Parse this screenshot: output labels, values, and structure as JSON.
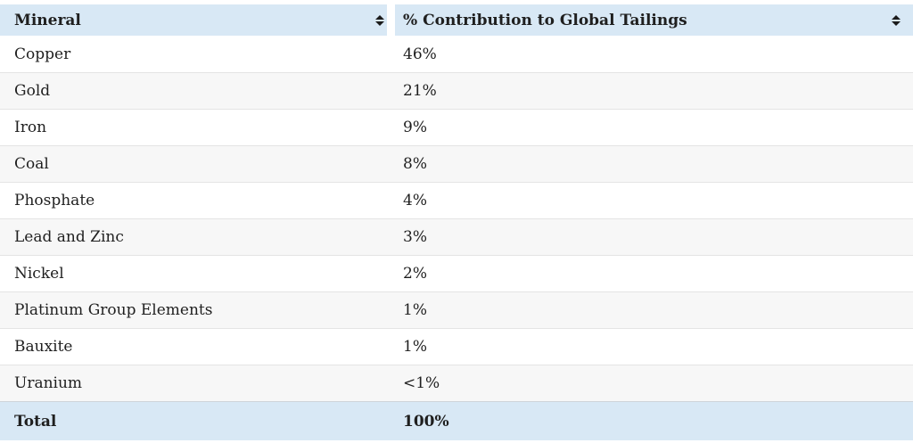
{
  "colors": {
    "header_bg": "#d8e8f5",
    "total_row_bg": "#d8e8f5",
    "stripe_bg": "#f7f7f7",
    "row_border": "#e4e4e4",
    "text": "#1f1f1f",
    "sort_icon": "#1b1b1b"
  },
  "table": {
    "columns": [
      {
        "label": "Mineral",
        "sort_icon": "sort-both"
      },
      {
        "label": "% Contribution to Global Tailings",
        "sort_icon": "sort-both"
      }
    ],
    "rows": [
      [
        "Copper",
        "46%"
      ],
      [
        "Gold",
        "21%"
      ],
      [
        "Iron",
        "9%"
      ],
      [
        "Coal",
        "8%"
      ],
      [
        "Phosphate",
        "4%"
      ],
      [
        "Lead and Zinc",
        "3%"
      ],
      [
        "Nickel",
        "2%"
      ],
      [
        "Platinum Group Elements",
        "1%"
      ],
      [
        "Bauxite",
        "1%"
      ],
      [
        "Uranium",
        "<1%"
      ]
    ],
    "footer": {
      "label": "Total",
      "value": "100%"
    }
  },
  "chart_data": {
    "type": "table",
    "title": "",
    "columns": [
      "Mineral",
      "% Contribution to Global Tailings"
    ],
    "rows": [
      {
        "mineral": "Copper",
        "contribution_display": "46%",
        "contribution_pct": 46
      },
      {
        "mineral": "Gold",
        "contribution_display": "21%",
        "contribution_pct": 21
      },
      {
        "mineral": "Iron",
        "contribution_display": "9%",
        "contribution_pct": 9
      },
      {
        "mineral": "Coal",
        "contribution_display": "8%",
        "contribution_pct": 8
      },
      {
        "mineral": "Phosphate",
        "contribution_display": "4%",
        "contribution_pct": 4
      },
      {
        "mineral": "Lead and Zinc",
        "contribution_display": "3%",
        "contribution_pct": 3
      },
      {
        "mineral": "Nickel",
        "contribution_display": "2%",
        "contribution_pct": 2
      },
      {
        "mineral": "Platinum Group Elements",
        "contribution_display": "1%",
        "contribution_pct": 1
      },
      {
        "mineral": "Bauxite",
        "contribution_display": "1%",
        "contribution_pct": 1
      },
      {
        "mineral": "Uranium",
        "contribution_display": "<1%",
        "contribution_pct": 0.5
      },
      {
        "mineral": "Total",
        "contribution_display": "100%",
        "contribution_pct": 100
      }
    ],
    "layout": {
      "sortable_columns": true,
      "striped_rows": true,
      "total_row": true
    }
  }
}
